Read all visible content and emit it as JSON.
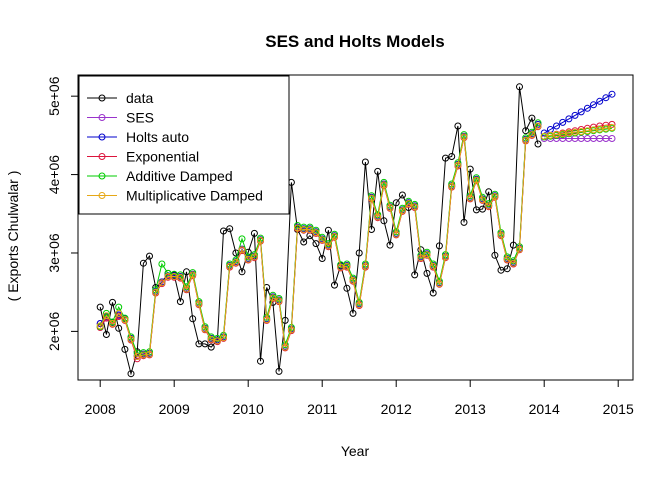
{
  "chart_data": {
    "type": "line",
    "title": "SES and Holts Models",
    "xlabel": "Year",
    "ylabel": "( Exports Chulwalar )",
    "xlim": [
      2008,
      2015
    ],
    "ylim": [
      1380000,
      5270000
    ],
    "x_ticks": [
      2008,
      2009,
      2010,
      2011,
      2012,
      2013,
      2014,
      2015
    ],
    "x_tick_labels": [
      "2008",
      "2009",
      "2010",
      "2011",
      "2012",
      "2013",
      "2014",
      "2015"
    ],
    "y_ticks": [
      2000000,
      3000000,
      4000000,
      5000000
    ],
    "y_tick_labels": [
      "2e+06",
      "3e+06",
      "4e+06",
      "5e+06"
    ],
    "grid": false,
    "legend_position": "top-left",
    "data": {
      "name": "data",
      "color": "#000000",
      "start": 2008,
      "frequency": 12,
      "values": [
        2310000,
        1960000,
        2370000,
        2040000,
        1770000,
        1460000,
        1740000,
        2870000,
        2960000,
        2560000,
        2630000,
        2740000,
        2720000,
        2380000,
        2760000,
        2160000,
        1840000,
        1840000,
        1800000,
        1890000,
        3280000,
        3310000,
        3000000,
        2760000,
        3010000,
        3250000,
        1620000,
        2560000,
        2370000,
        1490000,
        2140000,
        3900000,
        3300000,
        3140000,
        3220000,
        3120000,
        2930000,
        3290000,
        2590000,
        2840000,
        2550000,
        2230000,
        3000000,
        4160000,
        3300000,
        4040000,
        3410000,
        3100000,
        3640000,
        3740000,
        3580000,
        2720000,
        3040000,
        2740000,
        2490000,
        3090000,
        4210000,
        4230000,
        4620000,
        3390000,
        4070000,
        3550000,
        3560000,
        3780000,
        2970000,
        2780000,
        2800000,
        3100000,
        5120000,
        4560000,
        4720000,
        4390000
      ]
    },
    "fitted_start": 2008.0,
    "fitted": [
      {
        "name": "SES",
        "color": "#9932cc",
        "values": [
          2100000,
          2180000,
          2100000,
          2200000,
          2150000,
          1900000,
          1680000,
          1700000,
          1710000,
          2500000,
          2620000,
          2700000,
          2700000,
          2690000,
          2540000,
          2720000,
          2350000,
          2030000,
          1900000,
          1880000,
          1920000,
          2830000,
          2880000,
          3040000,
          2920000,
          2950000,
          3160000,
          2150000,
          2430000,
          2390000,
          1800000,
          2020000,
          3320000,
          3300000,
          3300000,
          3260000,
          3170000,
          3090000,
          3210000,
          2820000,
          2830000,
          2650000,
          2340000,
          2830000,
          3700000,
          3460000,
          3870000,
          3580000,
          3240000,
          3540000,
          3630000,
          3590000,
          2940000,
          2980000,
          2830000,
          2610000,
          2950000,
          3850000,
          4120000,
          4480000,
          3700000,
          3930000,
          3680000,
          3600000,
          3720000,
          3230000,
          2920000,
          2870000,
          3050000,
          4440000,
          4510000,
          4620000
        ]
      },
      {
        "name": "Holts auto",
        "color": "#0000cd",
        "values": [
          2100000,
          2190000,
          2110000,
          2210000,
          2160000,
          1910000,
          1690000,
          1710000,
          1720000,
          2510000,
          2630000,
          2710000,
          2710000,
          2700000,
          2550000,
          2730000,
          2360000,
          2040000,
          1910000,
          1890000,
          1930000,
          2840000,
          2890000,
          3050000,
          2930000,
          2960000,
          3170000,
          2160000,
          2440000,
          2400000,
          1810000,
          2030000,
          3330000,
          3310000,
          3310000,
          3270000,
          3180000,
          3100000,
          3220000,
          2830000,
          2840000,
          2660000,
          2350000,
          2840000,
          3710000,
          3470000,
          3880000,
          3590000,
          3250000,
          3550000,
          3640000,
          3600000,
          2950000,
          2990000,
          2840000,
          2620000,
          2960000,
          3860000,
          4130000,
          4490000,
          3710000,
          3940000,
          3690000,
          3610000,
          3730000,
          3240000,
          2930000,
          2880000,
          3060000,
          4450000,
          4520000,
          4640000
        ]
      },
      {
        "name": "Exponential",
        "color": "#dc143c",
        "values": [
          2050000,
          2170000,
          2090000,
          2190000,
          2140000,
          1890000,
          1650000,
          1690000,
          1700000,
          2490000,
          2610000,
          2690000,
          2690000,
          2680000,
          2530000,
          2710000,
          2340000,
          2020000,
          1890000,
          1870000,
          1910000,
          2820000,
          2870000,
          3030000,
          2910000,
          2940000,
          3150000,
          2140000,
          2420000,
          2380000,
          1790000,
          2010000,
          3310000,
          3290000,
          3290000,
          3250000,
          3160000,
          3080000,
          3200000,
          2810000,
          2820000,
          2640000,
          2330000,
          2820000,
          3690000,
          3450000,
          3860000,
          3570000,
          3230000,
          3530000,
          3620000,
          3580000,
          2930000,
          2970000,
          2820000,
          2600000,
          2940000,
          3840000,
          4110000,
          4470000,
          3690000,
          3920000,
          3670000,
          3590000,
          3710000,
          3220000,
          2910000,
          2860000,
          3040000,
          4430000,
          4500000,
          4610000
        ]
      },
      {
        "name": "Additive Damped",
        "color": "#00cc00",
        "values": [
          2060000,
          2230000,
          2120000,
          2310000,
          2170000,
          1930000,
          1720000,
          1730000,
          1740000,
          2530000,
          2860000,
          2740000,
          2730000,
          2720000,
          2570000,
          2750000,
          2380000,
          2060000,
          1930000,
          1910000,
          1950000,
          2860000,
          2910000,
          3180000,
          2950000,
          2980000,
          3190000,
          2180000,
          2460000,
          2420000,
          1830000,
          2050000,
          3350000,
          3330000,
          3330000,
          3290000,
          3200000,
          3120000,
          3240000,
          2850000,
          2860000,
          2680000,
          2370000,
          2860000,
          3730000,
          3490000,
          3900000,
          3610000,
          3270000,
          3570000,
          3660000,
          3620000,
          2970000,
          3010000,
          2860000,
          2640000,
          2980000,
          3880000,
          4150000,
          4510000,
          3730000,
          3960000,
          3710000,
          3630000,
          3750000,
          3260000,
          2950000,
          2900000,
          3080000,
          4470000,
          4540000,
          4660000
        ]
      },
      {
        "name": "Multiplicative Damped",
        "color": "#e6a817",
        "values": [
          2070000,
          2200000,
          2100000,
          2230000,
          2150000,
          1900000,
          1680000,
          1700000,
          1710000,
          2500000,
          2620000,
          2700000,
          2700000,
          2690000,
          2540000,
          2720000,
          2350000,
          2030000,
          1900000,
          1880000,
          1920000,
          2830000,
          2880000,
          3040000,
          2920000,
          2950000,
          3160000,
          2150000,
          2430000,
          2390000,
          1800000,
          2020000,
          3320000,
          3300000,
          3300000,
          3260000,
          3170000,
          3090000,
          3210000,
          2820000,
          2830000,
          2650000,
          2340000,
          2830000,
          3700000,
          3460000,
          3870000,
          3580000,
          3240000,
          3540000,
          3630000,
          3590000,
          2940000,
          2980000,
          2830000,
          2610000,
          2950000,
          3850000,
          4120000,
          4480000,
          3700000,
          3930000,
          3680000,
          3600000,
          3720000,
          3230000,
          2920000,
          2870000,
          3050000,
          4440000,
          4510000,
          4620000
        ]
      }
    ],
    "forecast_start": 2014.0,
    "forecast": [
      {
        "name": "SES",
        "color": "#9932cc",
        "values": [
          4460000,
          4460000,
          4460000,
          4460000,
          4460000,
          4460000,
          4460000,
          4460000,
          4460000,
          4460000,
          4460000,
          4460000
        ]
      },
      {
        "name": "Holts auto",
        "color": "#0000cd",
        "values": [
          4530000,
          4575000,
          4620000,
          4665000,
          4710000,
          4755000,
          4800000,
          4845000,
          4890000,
          4935000,
          4980000,
          5025000
        ]
      },
      {
        "name": "Exponential",
        "color": "#dc143c",
        "values": [
          4485000,
          4500000,
          4515000,
          4530000,
          4545000,
          4560000,
          4575000,
          4590000,
          4605000,
          4620000,
          4630000,
          4640000
        ]
      },
      {
        "name": "Additive Damped",
        "color": "#00cc00",
        "values": [
          4480000,
          4490000,
          4500000,
          4510000,
          4520000,
          4530000,
          4540000,
          4550000,
          4560000,
          4570000,
          4580000,
          4590000
        ]
      },
      {
        "name": "Multiplicative Damped",
        "color": "#e6a817",
        "values": [
          4490000,
          4500000,
          4510000,
          4520000,
          4530000,
          4540000,
          4550000,
          4560000,
          4570000,
          4580000,
          4590000,
          4600000
        ]
      }
    ],
    "legend": [
      {
        "label": "data",
        "color": "#000000"
      },
      {
        "label": "SES",
        "color": "#9932cc"
      },
      {
        "label": "Holts auto",
        "color": "#0000cd"
      },
      {
        "label": "Exponential",
        "color": "#dc143c"
      },
      {
        "label": "Additive Damped",
        "color": "#00cc00"
      },
      {
        "label": "Multiplicative Damped",
        "color": "#e6a817"
      }
    ]
  }
}
